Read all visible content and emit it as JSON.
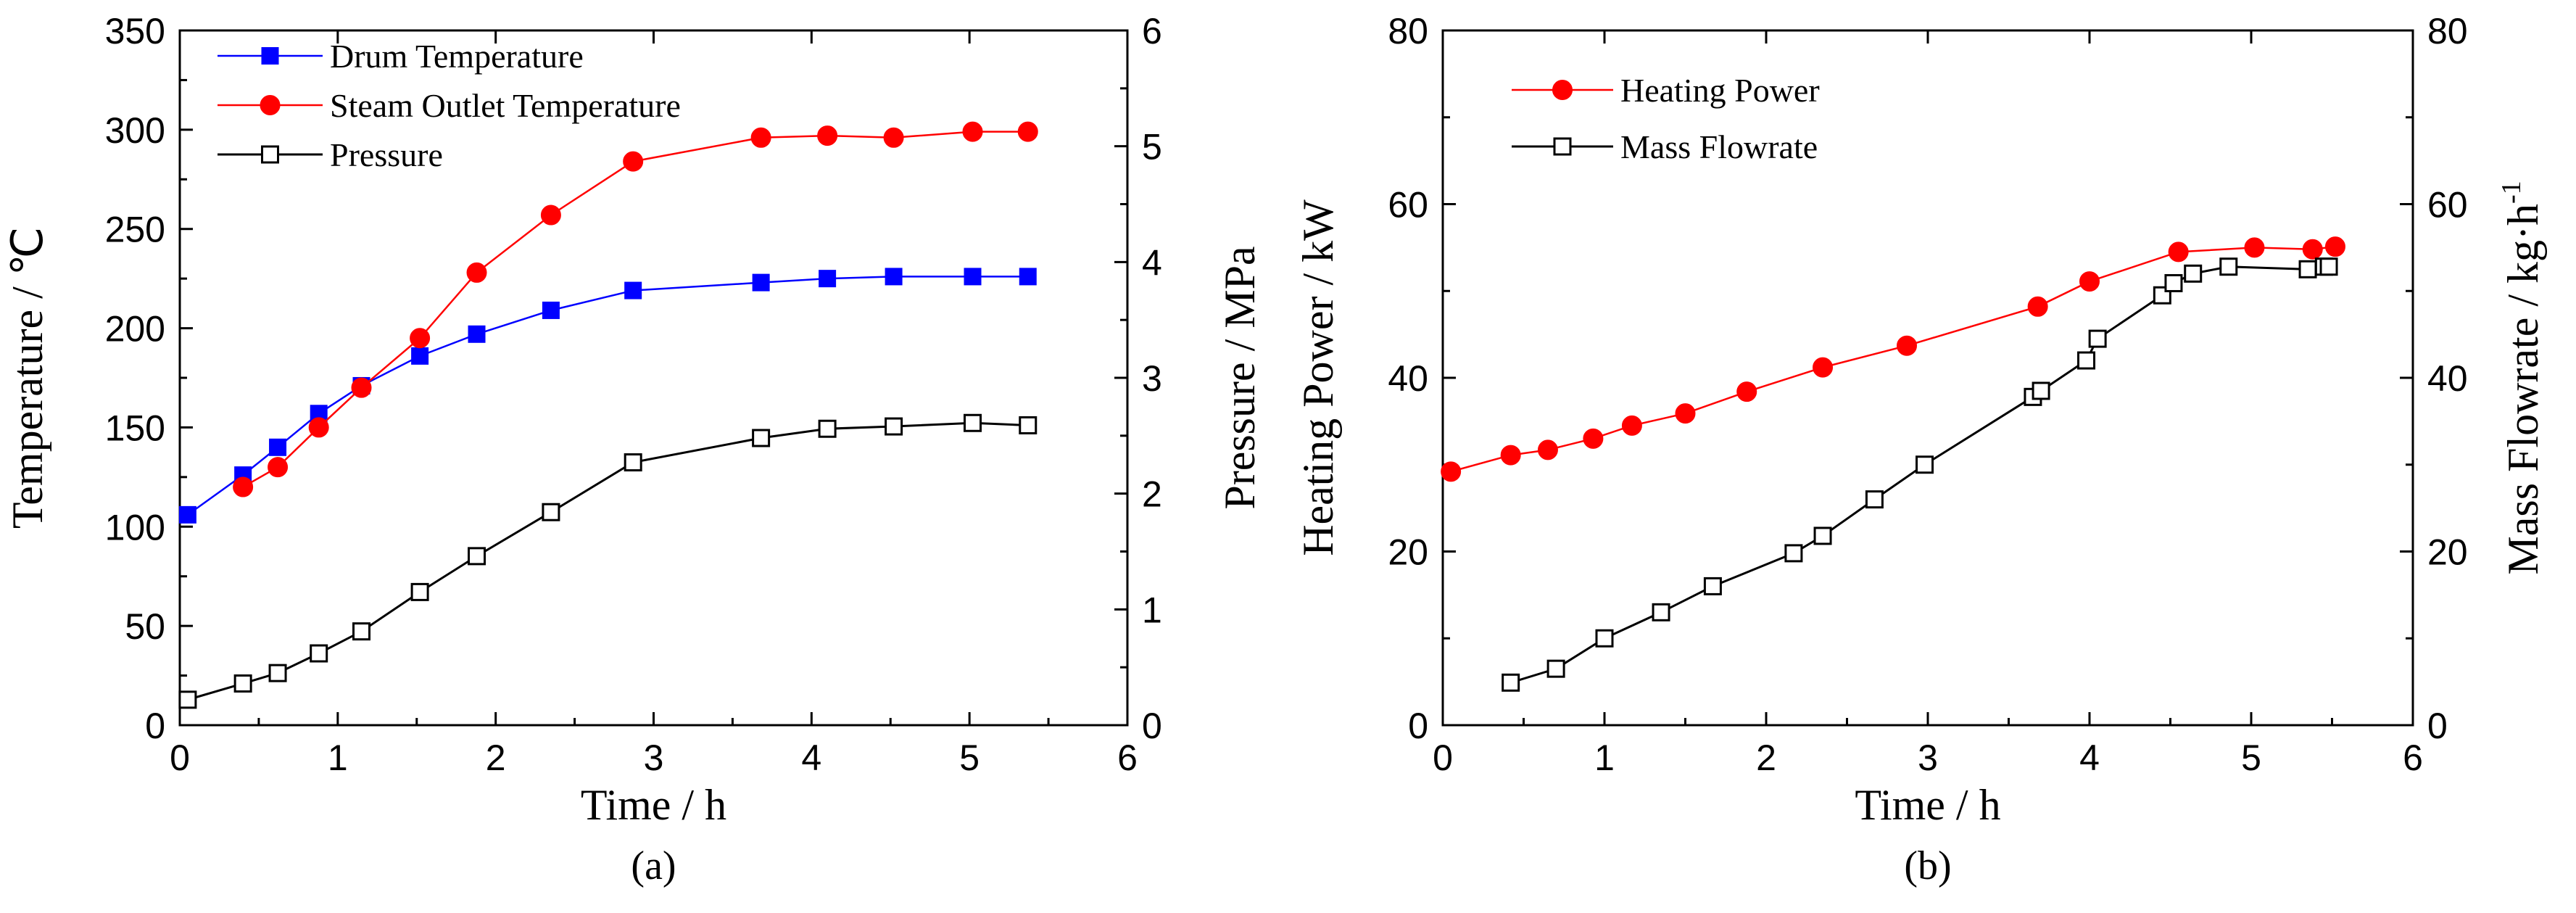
{
  "chart_data": [
    {
      "type": "line",
      "caption": "(a)",
      "xlabel": "Time / h",
      "ylabel": "Temperature / ℃",
      "y2label": "Pressure / MPa",
      "xlim": [
        0,
        6
      ],
      "ylim": [
        0,
        350
      ],
      "y2lim": [
        0,
        6
      ],
      "x_ticks": [
        "0",
        "1",
        "2",
        "3",
        "4",
        "5",
        "6"
      ],
      "y_ticks": [
        "0",
        "50",
        "100",
        "150",
        "200",
        "250",
        "300",
        "350"
      ],
      "y2_ticks": [
        "0",
        "1",
        "2",
        "3",
        "4",
        "5",
        "6"
      ],
      "legend_position": "top-left",
      "series": [
        {
          "name": "Drum Temperature",
          "axis": "left",
          "color": "#0000ff",
          "marker": "filled-square",
          "x": [
            0.05,
            0.4,
            0.62,
            0.88,
            1.15,
            1.52,
            1.88,
            2.35,
            2.87,
            3.68,
            4.1,
            4.52,
            5.02,
            5.37
          ],
          "values": [
            106,
            126,
            140,
            157,
            171,
            186,
            197,
            209,
            219,
            223,
            225,
            226,
            226,
            226
          ]
        },
        {
          "name": "Steam Outlet Temperature",
          "axis": "left",
          "color": "#ff0000",
          "marker": "filled-circle",
          "x": [
            0.4,
            0.62,
            0.88,
            1.15,
            1.52,
            1.88,
            2.35,
            2.87,
            3.68,
            4.1,
            4.52,
            5.02,
            5.37
          ],
          "values": [
            120,
            130,
            150,
            170,
            195,
            228,
            257,
            284,
            296,
            297,
            296,
            299,
            299
          ]
        },
        {
          "name": "Pressure",
          "axis": "right",
          "color": "#000000",
          "marker": "open-square",
          "x": [
            0.05,
            0.4,
            0.62,
            0.88,
            1.15,
            1.52,
            1.88,
            2.35,
            2.87,
            3.68,
            4.1,
            4.52,
            5.02,
            5.37
          ],
          "values": [
            0.22,
            0.36,
            0.45,
            0.62,
            0.81,
            1.15,
            1.46,
            1.84,
            2.27,
            2.48,
            2.56,
            2.58,
            2.61,
            2.59
          ]
        }
      ]
    },
    {
      "type": "line",
      "caption": "(b)",
      "xlabel": "Time / h",
      "ylabel": "Heating Power / kW",
      "y2label": "Mass Flowrate / kg·h",
      "y2label_sup": "-1",
      "xlim": [
        0,
        6
      ],
      "ylim": [
        0,
        80
      ],
      "y2lim": [
        0,
        80
      ],
      "x_ticks": [
        "0",
        "1",
        "2",
        "3",
        "4",
        "5",
        "6"
      ],
      "y_ticks": [
        "0",
        "20",
        "40",
        "60",
        "80"
      ],
      "y2_ticks": [
        "0",
        "20",
        "40",
        "60",
        "80"
      ],
      "legend_position": "top-left",
      "series": [
        {
          "name": "Heating Power",
          "axis": "left",
          "color": "#ff0000",
          "marker": "filled-circle",
          "x": [
            0.05,
            0.42,
            0.65,
            0.93,
            1.17,
            1.5,
            1.88,
            2.35,
            2.87,
            3.68,
            4.0,
            4.55,
            5.02,
            5.38,
            5.52
          ],
          "values": [
            29.2,
            31.1,
            31.7,
            33.0,
            34.5,
            35.9,
            38.4,
            41.2,
            43.7,
            48.2,
            51.1,
            54.5,
            55.0,
            54.8,
            55.1
          ]
        },
        {
          "name": "Mass Flowrate",
          "axis": "right",
          "color": "#000000",
          "marker": "open-square",
          "x": [
            0.42,
            0.7,
            1.0,
            1.35,
            1.67,
            2.17,
            2.35,
            2.67,
            2.98,
            3.65,
            3.7,
            3.98,
            4.05,
            4.45,
            4.52,
            4.64,
            4.86,
            5.35,
            5.45,
            5.48
          ],
          "values": [
            4.9,
            6.5,
            10.0,
            13.0,
            16.0,
            19.8,
            21.8,
            26.0,
            30.0,
            37.8,
            38.5,
            42.0,
            44.5,
            49.5,
            50.9,
            52.0,
            52.8,
            52.5,
            52.8,
            52.8
          ]
        }
      ]
    }
  ]
}
